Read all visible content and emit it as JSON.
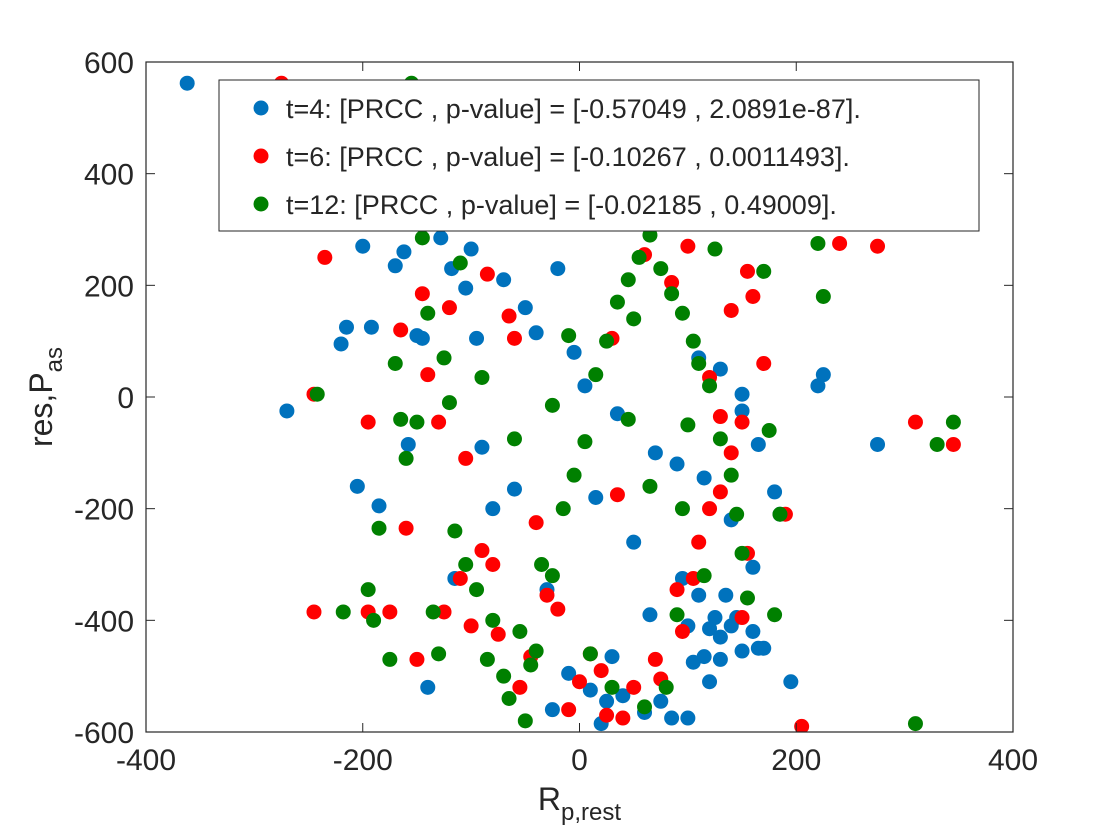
{
  "chart_data": {
    "type": "scatter",
    "xlabel": "R",
    "xlabel_sub": "p,rest",
    "ylabel": "res,P",
    "ylabel_sub": "as",
    "xlim": [
      -400,
      400
    ],
    "ylim": [
      -600,
      600
    ],
    "xticks": [
      -400,
      -200,
      0,
      200,
      400
    ],
    "yticks": [
      -600,
      -400,
      -200,
      0,
      200,
      400,
      600
    ],
    "grid": false,
    "legend_position": "top-right",
    "series": [
      {
        "name": "t=4: [PRCC , p-value] = [-0.57049 , 2.0891e-87].",
        "color": "#0072BD",
        "points": [
          [
            -362,
            562
          ],
          [
            -270,
            -25
          ],
          [
            -220,
            95
          ],
          [
            -215,
            125
          ],
          [
            -205,
            -160
          ],
          [
            -200,
            270
          ],
          [
            -192,
            125
          ],
          [
            -185,
            -195
          ],
          [
            -170,
            235
          ],
          [
            -162,
            260
          ],
          [
            -158,
            -85
          ],
          [
            -150,
            110
          ],
          [
            -145,
            105
          ],
          [
            -140,
            -520
          ],
          [
            -128,
            285
          ],
          [
            -118,
            230
          ],
          [
            -115,
            -325
          ],
          [
            -105,
            195
          ],
          [
            -100,
            265
          ],
          [
            -95,
            105
          ],
          [
            -90,
            -90
          ],
          [
            -80,
            -200
          ],
          [
            -70,
            210
          ],
          [
            -60,
            -165
          ],
          [
            -50,
            160
          ],
          [
            -40,
            115
          ],
          [
            -30,
            -345
          ],
          [
            -25,
            -560
          ],
          [
            -10,
            -495
          ],
          [
            5,
            20
          ],
          [
            10,
            -525
          ],
          [
            20,
            -585
          ],
          [
            25,
            -545
          ],
          [
            30,
            -465
          ],
          [
            40,
            -535
          ],
          [
            60,
            -565
          ],
          [
            65,
            -390
          ],
          [
            75,
            -545
          ],
          [
            85,
            -575
          ],
          [
            100,
            -575
          ],
          [
            105,
            -475
          ],
          [
            110,
            -355
          ],
          [
            115,
            -465
          ],
          [
            120,
            -415
          ],
          [
            125,
            -395
          ],
          [
            130,
            -430
          ],
          [
            135,
            -355
          ],
          [
            140,
            -410
          ],
          [
            145,
            -395
          ],
          [
            150,
            -455
          ],
          [
            160,
            -305
          ],
          [
            165,
            -450
          ],
          [
            170,
            -450
          ],
          [
            160,
            -420
          ],
          [
            150,
            -25
          ],
          [
            165,
            -85
          ],
          [
            180,
            -170
          ],
          [
            185,
            -210
          ],
          [
            195,
            -510
          ],
          [
            220,
            20
          ],
          [
            225,
            40
          ],
          [
            275,
            -85
          ],
          [
            140,
            -220
          ],
          [
            115,
            -145
          ],
          [
            120,
            -510
          ],
          [
            130,
            -470
          ],
          [
            95,
            -325
          ],
          [
            90,
            -120
          ],
          [
            70,
            -100
          ],
          [
            35,
            -30
          ],
          [
            -5,
            80
          ],
          [
            15,
            -180
          ],
          [
            50,
            -260
          ],
          [
            -20,
            230
          ],
          [
            110,
            70
          ],
          [
            130,
            50
          ],
          [
            150,
            5
          ],
          [
            100,
            -410
          ]
        ]
      },
      {
        "name": "t=6: [PRCC , p-value] = [-0.10267 , 0.0011493].",
        "color": "#FF0000",
        "points": [
          [
            -275,
            562
          ],
          [
            -245,
            5
          ],
          [
            -245,
            -385
          ],
          [
            -235,
            250
          ],
          [
            -195,
            -385
          ],
          [
            -195,
            -45
          ],
          [
            -175,
            -385
          ],
          [
            -165,
            120
          ],
          [
            -160,
            -235
          ],
          [
            -150,
            -470
          ],
          [
            -145,
            185
          ],
          [
            -130,
            -45
          ],
          [
            -125,
            -385
          ],
          [
            -110,
            -325
          ],
          [
            -100,
            -410
          ],
          [
            -105,
            -110
          ],
          [
            -90,
            -275
          ],
          [
            -80,
            -300
          ],
          [
            -75,
            -425
          ],
          [
            -55,
            -520
          ],
          [
            -45,
            -465
          ],
          [
            -40,
            -225
          ],
          [
            -30,
            -355
          ],
          [
            -20,
            -380
          ],
          [
            -10,
            -560
          ],
          [
            0,
            -510
          ],
          [
            10,
            -460
          ],
          [
            20,
            -490
          ],
          [
            25,
            -570
          ],
          [
            40,
            -575
          ],
          [
            50,
            -520
          ],
          [
            70,
            -470
          ],
          [
            75,
            -505
          ],
          [
            95,
            -420
          ],
          [
            105,
            -325
          ],
          [
            110,
            -260
          ],
          [
            120,
            -200
          ],
          [
            130,
            -170
          ],
          [
            140,
            -100
          ],
          [
            150,
            -45
          ],
          [
            155,
            225
          ],
          [
            160,
            180
          ],
          [
            170,
            60
          ],
          [
            190,
            -210
          ],
          [
            205,
            -590
          ],
          [
            240,
            275
          ],
          [
            275,
            270
          ],
          [
            310,
            -45
          ],
          [
            345,
            -85
          ],
          [
            140,
            155
          ],
          [
            120,
            35
          ],
          [
            85,
            205
          ],
          [
            60,
            255
          ],
          [
            35,
            -175
          ],
          [
            -60,
            105
          ],
          [
            -85,
            220
          ],
          [
            -120,
            160
          ],
          [
            -140,
            40
          ],
          [
            -65,
            145
          ],
          [
            30,
            105
          ],
          [
            90,
            -345
          ],
          [
            100,
            270
          ],
          [
            130,
            -35
          ],
          [
            150,
            -395
          ],
          [
            155,
            -280
          ]
        ]
      },
      {
        "name": "t=12: [PRCC , p-value] = [-0.02185 , 0.49009].",
        "color": "#008000",
        "points": [
          [
            -155,
            562
          ],
          [
            -242,
            5
          ],
          [
            -218,
            -385
          ],
          [
            -195,
            -345
          ],
          [
            -190,
            -400
          ],
          [
            -185,
            -235
          ],
          [
            -175,
            -470
          ],
          [
            -170,
            60
          ],
          [
            -165,
            -40
          ],
          [
            -160,
            -110
          ],
          [
            -150,
            -45
          ],
          [
            -145,
            285
          ],
          [
            -140,
            150
          ],
          [
            -135,
            -385
          ],
          [
            -130,
            -460
          ],
          [
            -125,
            70
          ],
          [
            -120,
            -10
          ],
          [
            -115,
            -240
          ],
          [
            -105,
            -300
          ],
          [
            -95,
            -345
          ],
          [
            -85,
            -470
          ],
          [
            -80,
            -400
          ],
          [
            -70,
            -500
          ],
          [
            -65,
            -540
          ],
          [
            -55,
            -420
          ],
          [
            -50,
            -580
          ],
          [
            -45,
            -480
          ],
          [
            -40,
            -455
          ],
          [
            -35,
            -300
          ],
          [
            -25,
            -320
          ],
          [
            -15,
            -200
          ],
          [
            -5,
            -140
          ],
          [
            5,
            -80
          ],
          [
            15,
            40
          ],
          [
            25,
            100
          ],
          [
            35,
            170
          ],
          [
            45,
            210
          ],
          [
            55,
            250
          ],
          [
            65,
            290
          ],
          [
            75,
            230
          ],
          [
            85,
            185
          ],
          [
            95,
            150
          ],
          [
            105,
            100
          ],
          [
            110,
            60
          ],
          [
            120,
            20
          ],
          [
            130,
            -75
          ],
          [
            140,
            -140
          ],
          [
            145,
            -210
          ],
          [
            150,
            -280
          ],
          [
            155,
            -360
          ],
          [
            170,
            225
          ],
          [
            175,
            -60
          ],
          [
            180,
            -390
          ],
          [
            185,
            -210
          ],
          [
            220,
            275
          ],
          [
            225,
            180
          ],
          [
            310,
            -585
          ],
          [
            330,
            -85
          ],
          [
            345,
            -45
          ],
          [
            60,
            -555
          ],
          [
            80,
            -520
          ],
          [
            90,
            -390
          ],
          [
            95,
            -200
          ],
          [
            -25,
            -15
          ],
          [
            -60,
            -75
          ],
          [
            -90,
            35
          ],
          [
            -110,
            240
          ],
          [
            10,
            -460
          ],
          [
            30,
            -520
          ],
          [
            45,
            -40
          ],
          [
            -10,
            110
          ],
          [
            65,
            -160
          ],
          [
            100,
            -50
          ],
          [
            115,
            -320
          ],
          [
            125,
            265
          ],
          [
            50,
            140
          ]
        ]
      }
    ]
  }
}
